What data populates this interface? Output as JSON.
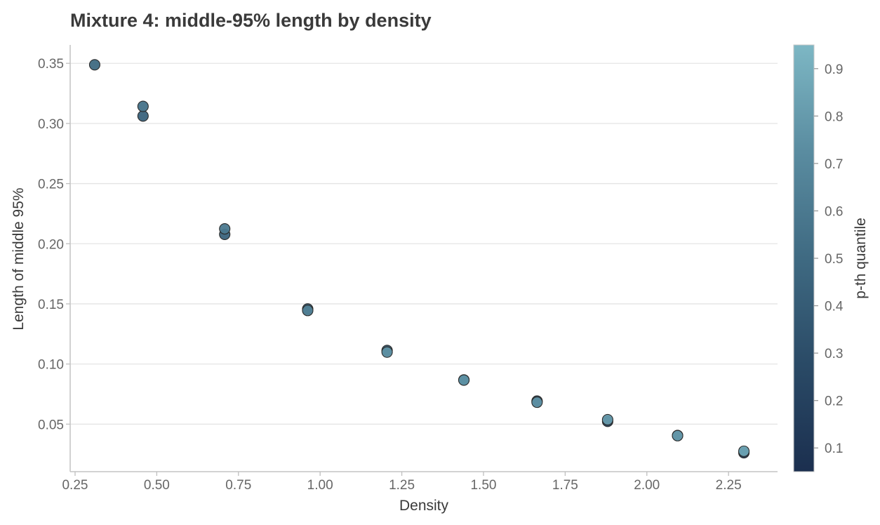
{
  "chart_data": {
    "type": "scatter",
    "title": "Mixture 4: middle-95% length by density",
    "xlabel": "Density",
    "ylabel": "Length of middle 95%",
    "colorbar_label": "p-th quantile",
    "xlim": [
      0.235,
      2.4
    ],
    "ylim": [
      0.0105,
      0.3653
    ],
    "x_ticks": [
      {
        "value": 0.25,
        "label": "0.25"
      },
      {
        "value": 0.5,
        "label": "0.50"
      },
      {
        "value": 0.75,
        "label": "0.75"
      },
      {
        "value": 1.0,
        "label": "1.00"
      },
      {
        "value": 1.25,
        "label": "1.25"
      },
      {
        "value": 1.5,
        "label": "1.50"
      },
      {
        "value": 1.75,
        "label": "1.75"
      },
      {
        "value": 2.0,
        "label": "2.00"
      },
      {
        "value": 2.25,
        "label": "2.25"
      }
    ],
    "y_ticks": [
      {
        "value": 0.05,
        "label": "0.05"
      },
      {
        "value": 0.1,
        "label": "0.10"
      },
      {
        "value": 0.15,
        "label": "0.15"
      },
      {
        "value": 0.2,
        "label": "0.20"
      },
      {
        "value": 0.25,
        "label": "0.25"
      },
      {
        "value": 0.3,
        "label": "0.30"
      },
      {
        "value": 0.35,
        "label": "0.35"
      }
    ],
    "colorbar_range": [
      0.05,
      0.95
    ],
    "colorbar_ticks": [
      {
        "value": 0.1,
        "label": "0.1"
      },
      {
        "value": 0.2,
        "label": "0.2"
      },
      {
        "value": 0.3,
        "label": "0.3"
      },
      {
        "value": 0.4,
        "label": "0.4"
      },
      {
        "value": 0.5,
        "label": "0.5"
      },
      {
        "value": 0.6,
        "label": "0.6"
      },
      {
        "value": 0.7,
        "label": "0.7"
      },
      {
        "value": 0.8,
        "label": "0.8"
      },
      {
        "value": 0.9,
        "label": "0.9"
      }
    ],
    "colormap": [
      "#1b2f4f",
      "#2a4a66",
      "#3f6a82",
      "#5a8ca0",
      "#7db7c4"
    ],
    "grid": "horizontal",
    "points": [
      {
        "x": 0.31,
        "y": 0.3488,
        "p": 0.5
      },
      {
        "x": 0.458,
        "y": 0.3062,
        "p": 0.45
      },
      {
        "x": 0.458,
        "y": 0.3142,
        "p": 0.55
      },
      {
        "x": 0.708,
        "y": 0.2078,
        "p": 0.45
      },
      {
        "x": 0.708,
        "y": 0.2124,
        "p": 0.6
      },
      {
        "x": 0.962,
        "y": 0.1458,
        "p": 0.35
      },
      {
        "x": 0.962,
        "y": 0.1445,
        "p": 0.65
      },
      {
        "x": 1.205,
        "y": 0.1113,
        "p": 0.4
      },
      {
        "x": 1.205,
        "y": 0.1099,
        "p": 0.75
      },
      {
        "x": 1.44,
        "y": 0.0868,
        "p": 0.5
      },
      {
        "x": 1.44,
        "y": 0.0866,
        "p": 0.75
      },
      {
        "x": 1.664,
        "y": 0.0692,
        "p": 0.3
      },
      {
        "x": 1.664,
        "y": 0.0682,
        "p": 0.75
      },
      {
        "x": 1.88,
        "y": 0.0523,
        "p": 0.2
      },
      {
        "x": 1.88,
        "y": 0.0537,
        "p": 0.8
      },
      {
        "x": 2.094,
        "y": 0.0406,
        "p": 0.25
      },
      {
        "x": 2.094,
        "y": 0.0404,
        "p": 0.8
      },
      {
        "x": 2.297,
        "y": 0.0262,
        "p": 0.15
      },
      {
        "x": 2.297,
        "y": 0.0275,
        "p": 0.85
      }
    ]
  }
}
